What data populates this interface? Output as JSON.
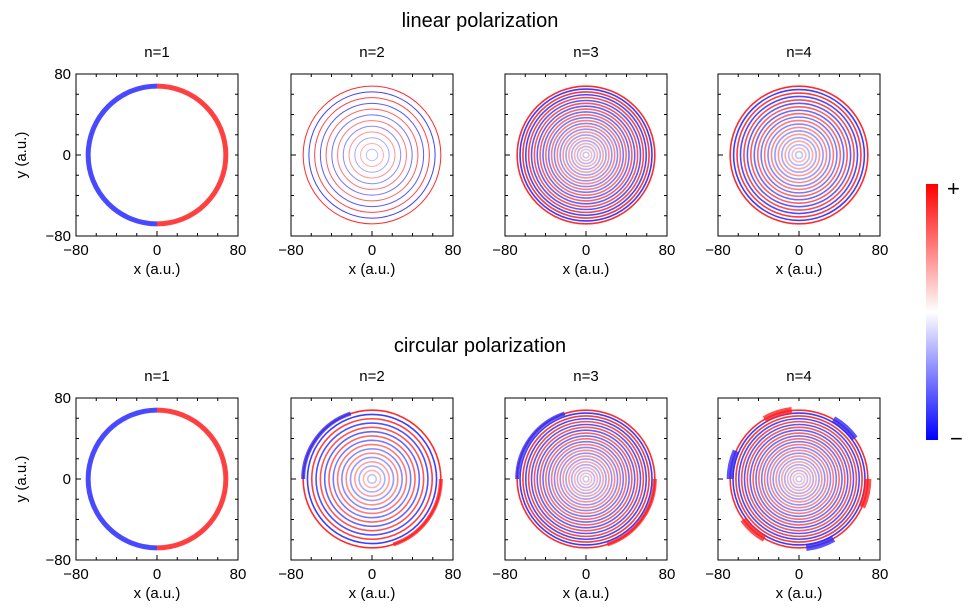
{
  "chart_data": {
    "type": "heatmap",
    "colorbar": {
      "max_label": "+",
      "min_label": "−",
      "colormap": [
        "#0000ff",
        "#ffffff",
        "#ff0000"
      ]
    },
    "rows": [
      {
        "title": "linear polarization",
        "panels": [
          {
            "title": "n=1",
            "ring_count": 1
          },
          {
            "title": "n=2",
            "ring_count": 12
          },
          {
            "title": "n=3",
            "ring_count": 24
          },
          {
            "title": "n=4",
            "ring_count": 20
          }
        ]
      },
      {
        "title": "circular polarization",
        "panels": [
          {
            "title": "n=1",
            "ring_count": 1
          },
          {
            "title": "n=2",
            "ring_count": 16
          },
          {
            "title": "n=3",
            "ring_count": 24
          },
          {
            "title": "n=4",
            "ring_count": 24
          }
        ]
      }
    ],
    "xlabel": "x (a.u.)",
    "ylabel": "y (a.u.)",
    "xlim": [
      -80,
      80
    ],
    "ylim": [
      -80,
      80
    ],
    "x_ticks": [
      "−80",
      "0",
      "80"
    ],
    "y_ticks": [
      "80",
      "0",
      "−80"
    ],
    "grid": false
  }
}
